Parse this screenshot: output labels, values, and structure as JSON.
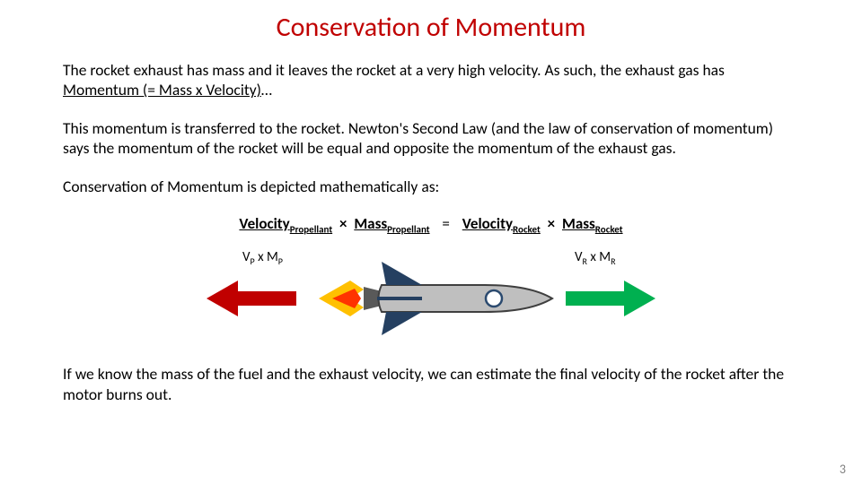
{
  "title": {
    "text": "Conservation of Momentum",
    "color": "#c00000",
    "fontsize": 30
  },
  "paragraphs": {
    "p1_a": "The rocket exhaust has mass and it leaves the rocket at a very high velocity.  As such, the exhaust gas has ",
    "p1_u": "Momentum (= Mass  x  Velocity)",
    "p1_b": "…",
    "p2": "This momentum is transferred to the rocket.  Newton's Second Law (and the law of conservation of momentum) says the momentum of the rocket will be equal and opposite the momentum of the exhaust gas.",
    "p3": "Conservation of Momentum is depicted mathematically as:",
    "p4": "If we know the mass of the fuel and the exhaust velocity, we can estimate the final velocity of the rocket after the motor burns out."
  },
  "equation": {
    "v1": "Velocity",
    "v1sub": "Propellant",
    "m1": "Mass",
    "m1sub": "Propellant",
    "eq": "=",
    "v2": "Velocity",
    "v2sub": "Rocket",
    "m2": "Mass",
    "m2sub": "Rocket",
    "times": "×"
  },
  "diagram": {
    "label_left": {
      "v": "V",
      "vs": "P",
      "x": " x ",
      "m": "M",
      "ms": "P"
    },
    "label_right": {
      "v": "V",
      "vs": "R",
      "x": " x ",
      "m": "M",
      "ms": "R"
    },
    "left_arrow_color": "#c00000",
    "right_arrow_color": "#00b050",
    "rocket": {
      "body_fill": "#bfbfbf",
      "body_stroke": "#3f3f3f",
      "window_fill": "#ffffff",
      "window_stroke": "#2b4a6f",
      "fin_fill": "#254061",
      "nozzle_fill": "#595959",
      "flame_outer": "#ffc000",
      "flame_inner": "#ff3300"
    }
  },
  "page_number": "3",
  "page_number_color": "#7f7f7f",
  "background": "#ffffff"
}
